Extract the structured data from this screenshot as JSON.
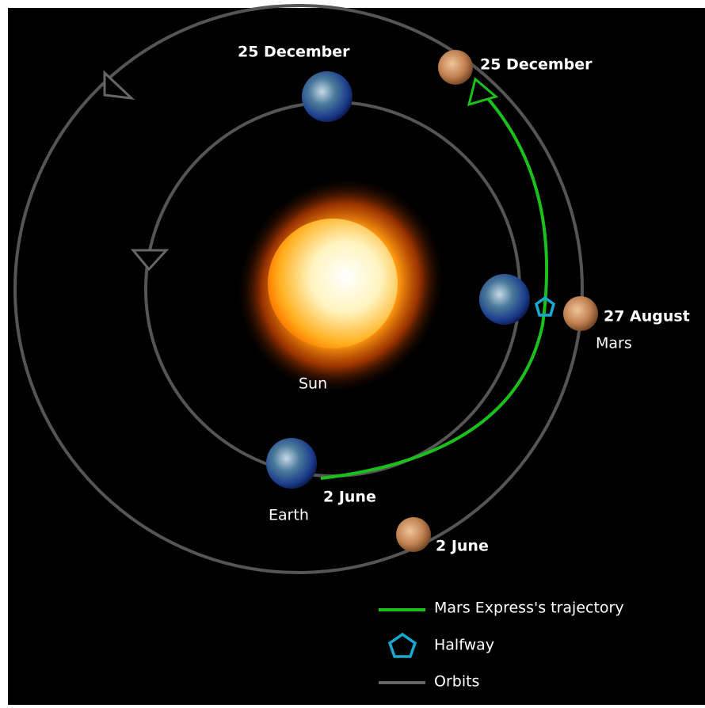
{
  "labels": {
    "earth_dec": "25 December",
    "mars_dec": "25 December",
    "mars_aug": "27 August",
    "mars": "Mars",
    "sun": "Sun",
    "earth_jun": "2 June",
    "earth": "Earth",
    "mars_jun": "2 June"
  },
  "legend": [
    {
      "label": "Mars Express's trajectory"
    },
    {
      "label": "Halfway"
    },
    {
      "label": "Orbits"
    }
  ]
}
